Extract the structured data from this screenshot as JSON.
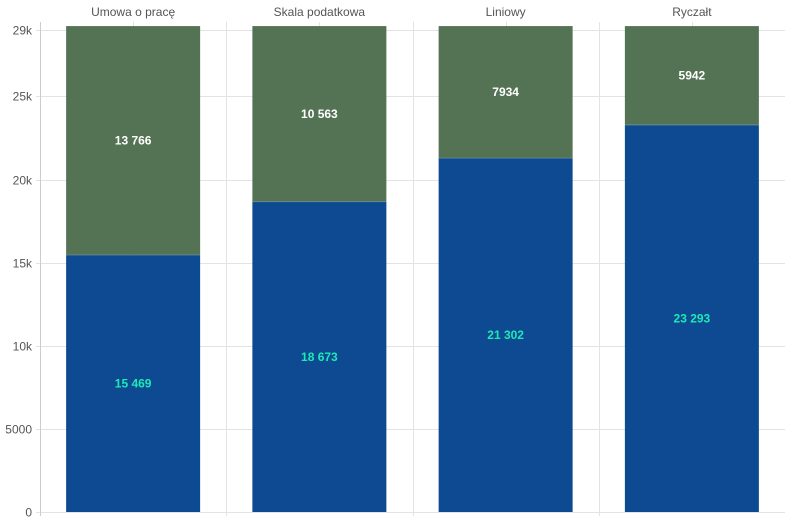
{
  "chart_data": {
    "type": "bar",
    "stacked": true,
    "categories": [
      "Umowa o pracę",
      "Skala podatkowa",
      "Liniowy",
      "Ryczałt"
    ],
    "category_axis_position": "top",
    "series": [
      {
        "values": [
          15469,
          18673,
          21302,
          23293
        ],
        "labels": [
          "15 469",
          "18 673",
          "21 302",
          "23 293"
        ],
        "color": "#0d4a91",
        "label_color": "#1de9b6"
      },
      {
        "values": [
          13766,
          10563,
          7934,
          5942
        ],
        "labels": [
          "13 766",
          "10 563",
          "7934",
          "5942"
        ],
        "color": "#547354",
        "label_color": "#ffffff"
      }
    ],
    "yticks": [
      0,
      5000,
      10000,
      15000,
      20000,
      25000,
      29000
    ],
    "ytick_labels": [
      "0",
      "5000",
      "10k",
      "15k",
      "20k",
      "25k",
      "29k"
    ],
    "ylim": [
      0,
      29000
    ],
    "grid": true,
    "legend": "none"
  }
}
